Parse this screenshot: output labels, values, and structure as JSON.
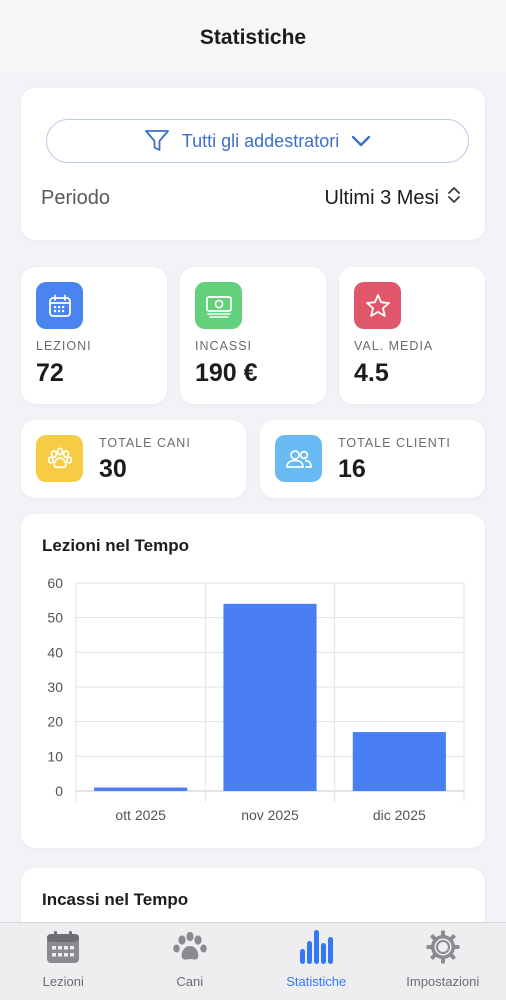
{
  "header": {
    "title": "Statistiche"
  },
  "filter": {
    "trainer_label": "Tutti gli addestratori",
    "period_label": "Periodo",
    "period_value": "Ultimi 3 Mesi"
  },
  "stats": {
    "lessons": {
      "label": "LEZIONI",
      "value": "72",
      "color": "#4a84f0",
      "icon": "calendar-icon"
    },
    "income": {
      "label": "INCASSI",
      "value": "190 €",
      "color": "#63d17c",
      "icon": "money-icon"
    },
    "rating": {
      "label": "VAL. MEDIA",
      "value": "4.5",
      "color": "#e0566a",
      "icon": "star-icon"
    },
    "dogs": {
      "label": "TOTALE CANI",
      "value": "30",
      "color": "#f6cc45",
      "icon": "paw-icon"
    },
    "clients": {
      "label": "TOTALE CLIENTI",
      "value": "16",
      "color": "#69b9f3",
      "icon": "people-icon"
    }
  },
  "chart_data": {
    "type": "bar",
    "title": "Lezioni nel Tempo",
    "categories": [
      "ott 2025",
      "nov 2025",
      "dic 2025"
    ],
    "values": [
      1,
      54,
      17
    ],
    "ylim": [
      0,
      60
    ],
    "yticks": [
      "0",
      "10",
      "20",
      "30",
      "40",
      "50",
      "60"
    ],
    "grid": true,
    "color": "#4a7ef5"
  },
  "income_chart": {
    "title": "Incassi nel Tempo"
  },
  "tabs": [
    {
      "label": "Lezioni",
      "icon": "calendar-icon",
      "active": false
    },
    {
      "label": "Cani",
      "icon": "paw-icon",
      "active": false
    },
    {
      "label": "Statistiche",
      "icon": "bar-chart-icon",
      "active": true
    },
    {
      "label": "Impostazioni",
      "icon": "gear-icon",
      "active": false
    }
  ],
  "colors": {
    "accent": "#3478f6",
    "select_text": "#3e6fc9",
    "background": "#f2f2f7"
  }
}
